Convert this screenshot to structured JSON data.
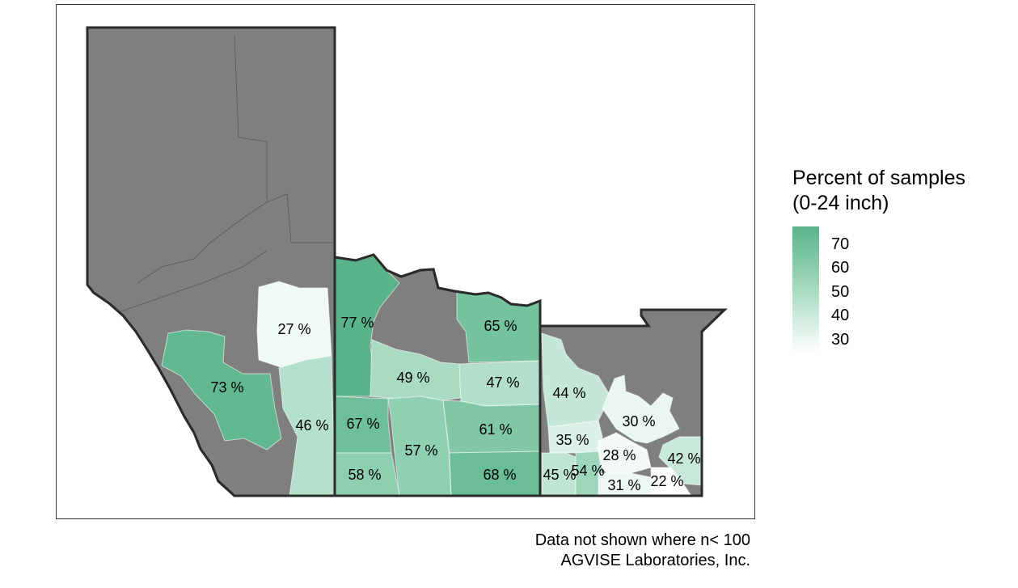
{
  "legend": {
    "title_line1": "Percent of samples",
    "title_line2": "(0-24 inch)",
    "ticks": [
      "70",
      "60",
      "50",
      "40",
      "30"
    ],
    "color_high": "#5ab48b",
    "color_low": "#ffffff",
    "no_data_color": "#7f7f7f"
  },
  "regions": [
    {
      "label": "27 %",
      "value": 27
    },
    {
      "label": "77 %",
      "value": 77
    },
    {
      "label": "65 %",
      "value": 65
    },
    {
      "label": "73 %",
      "value": 73
    },
    {
      "label": "49 %",
      "value": 49
    },
    {
      "label": "47 %",
      "value": 47
    },
    {
      "label": "44 %",
      "value": 44
    },
    {
      "label": "46 %",
      "value": 46
    },
    {
      "label": "67 %",
      "value": 67
    },
    {
      "label": "61 %",
      "value": 61
    },
    {
      "label": "30 %",
      "value": 30
    },
    {
      "label": "35 %",
      "value": 35
    },
    {
      "label": "57 %",
      "value": 57
    },
    {
      "label": "28 %",
      "value": 28
    },
    {
      "label": "42 %",
      "value": 42
    },
    {
      "label": "58 %",
      "value": 58
    },
    {
      "label": "68 %",
      "value": 68
    },
    {
      "label": "45 %",
      "value": 45
    },
    {
      "label": "54 %",
      "value": 54
    },
    {
      "label": "31 %",
      "value": 31
    },
    {
      "label": "22 %",
      "value": 22
    }
  ],
  "caption": {
    "line1": "Data not shown where n< 100",
    "line2": "AGVISE Laboratories, Inc."
  }
}
